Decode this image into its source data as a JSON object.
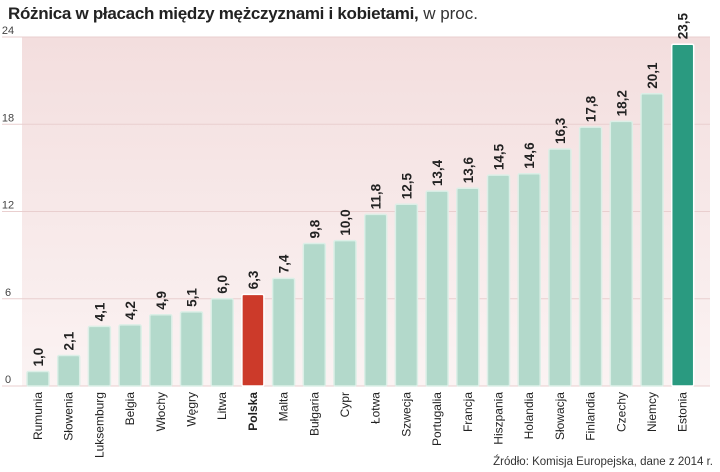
{
  "title": "Różnica w płacach między mężczyznami i kobietami,",
  "unit": "w proc.",
  "source": "Źródło: Komisja Europejska, dane z 2014 r.",
  "colors": {
    "bar": "#b3d9cb",
    "bar_stroke": "#dcefe7",
    "highlight_poland": "#cc3a2a",
    "highlight_estonia": "#2a9a80",
    "plot_bg_top": "#f3dede",
    "plot_bg_bottom": "#fbf3f3",
    "grid": "#e9cfcf"
  },
  "chart_data": {
    "type": "bar",
    "title": "Różnica w płacach między mężczyznami i kobietami, w proc.",
    "xlabel": "",
    "ylabel": "",
    "ylim": [
      0,
      24
    ],
    "yticks": [
      "0",
      "6",
      "12",
      "18",
      "24"
    ],
    "grid": true,
    "categories": [
      "Rumunia",
      "Słowenia",
      "Luksemburg",
      "Belgia",
      "Włochy",
      "Węgry",
      "Litwa",
      "Polska",
      "Malta",
      "Bułgaria",
      "Cypr",
      "Łotwa",
      "Szwecja",
      "Portugalia",
      "Francja",
      "Hiszpania",
      "Holandia",
      "Słowacja",
      "Finlandia",
      "Czechy",
      "Niemcy",
      "Estonia"
    ],
    "values": [
      1.0,
      2.1,
      4.1,
      4.2,
      4.9,
      5.1,
      6.0,
      6.3,
      7.4,
      9.8,
      10.0,
      11.8,
      12.5,
      13.4,
      13.6,
      14.5,
      14.6,
      16.3,
      17.8,
      18.2,
      20.1,
      23.5
    ],
    "labels": [
      "1,0",
      "2,1",
      "4,1",
      "4,2",
      "4,9",
      "5,1",
      "6,0",
      "6,3",
      "7,4",
      "9,8",
      "10,0",
      "11,8",
      "12,5",
      "13,4",
      "13,6",
      "14,5",
      "14,6",
      "16,3",
      "17,8",
      "18,2",
      "20,1",
      "23,5"
    ],
    "highlight": {
      "Polska": "highlight_poland",
      "Estonia": "highlight_estonia"
    }
  }
}
